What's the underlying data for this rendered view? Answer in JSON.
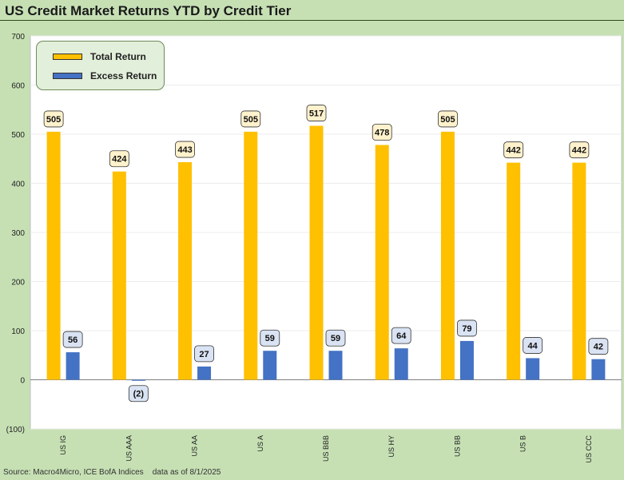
{
  "title": "US Credit Market Returns YTD by Credit Tier",
  "source": "Source: Macro4Micro, ICE BofA Indices    data as of 8/1/2025",
  "colors": {
    "total_return": "#ffc000",
    "excess_return": "#4472c4",
    "label_total_bg": "#fff2cc",
    "label_excess_bg": "#dae3f3"
  },
  "chart_data": {
    "type": "bar",
    "categories": [
      "US IG",
      "US AAA",
      "US AA",
      "US A",
      "US BBB",
      "US HY",
      "US BB",
      "US B",
      "US CCC"
    ],
    "series": [
      {
        "name": "Total Return",
        "values": [
          505,
          424,
          443,
          505,
          517,
          478,
          505,
          442,
          442
        ],
        "labels": [
          "505",
          "424",
          "443",
          "505",
          "517",
          "478",
          "505",
          "442",
          "442"
        ]
      },
      {
        "name": "Excess Return",
        "values": [
          56,
          -2,
          27,
          59,
          59,
          64,
          79,
          44,
          42
        ],
        "labels": [
          "56",
          "(2)",
          "27",
          "59",
          "59",
          "64",
          "79",
          "44",
          "42"
        ]
      }
    ],
    "ylim": [
      -100,
      700
    ],
    "yticks": [
      -100,
      0,
      100,
      200,
      300,
      400,
      500,
      600,
      700
    ],
    "ytick_labels": [
      "(100)",
      "0",
      "100",
      "200",
      "300",
      "400",
      "500",
      "600",
      "700"
    ],
    "legend": "top-left",
    "grid": true
  }
}
